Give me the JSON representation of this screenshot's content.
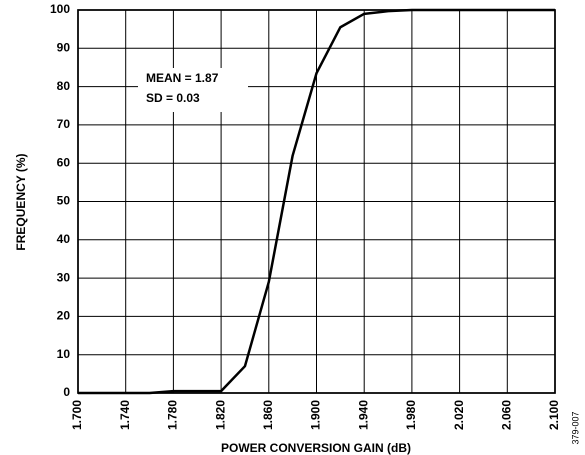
{
  "chart_data": {
    "type": "line",
    "x_label": "POWER CONVERSION GAIN (dB)",
    "y_label": "FREQUENCY (%)",
    "annotations": [
      "MEAN = 1.87",
      "SD = 0.03"
    ],
    "figure_code": "379-007",
    "x": [
      1.7,
      1.72,
      1.74,
      1.76,
      1.78,
      1.8,
      1.82,
      1.84,
      1.86,
      1.88,
      1.9,
      1.92,
      1.94,
      1.96,
      1.98,
      2.0,
      2.02,
      2.04,
      2.06,
      2.08,
      2.1
    ],
    "values": [
      0,
      0,
      0,
      0,
      0.5,
      0.5,
      0.5,
      7,
      29,
      62,
      83.5,
      95.5,
      99,
      99.7,
      100,
      100,
      100,
      100,
      100,
      100,
      100
    ],
    "color": "#000000",
    "xlim": [
      1.7,
      2.1
    ],
    "xticks": [
      {
        "value": 1.7,
        "label": "1.700"
      },
      {
        "value": 1.74,
        "label": "1.740"
      },
      {
        "value": 1.78,
        "label": "1.780"
      },
      {
        "value": 1.82,
        "label": "1.820"
      },
      {
        "value": 1.86,
        "label": "1.860"
      },
      {
        "value": 1.9,
        "label": "1.900"
      },
      {
        "value": 1.94,
        "label": "1.940"
      },
      {
        "value": 1.98,
        "label": "1.980"
      },
      {
        "value": 2.02,
        "label": "2.020"
      },
      {
        "value": 2.06,
        "label": "2.060"
      },
      {
        "value": 2.1,
        "label": "2.100"
      }
    ],
    "ylim": [
      0,
      100
    ],
    "yticks": [
      0,
      10,
      20,
      30,
      40,
      50,
      60,
      70,
      80,
      90,
      100
    ],
    "grid": true
  }
}
